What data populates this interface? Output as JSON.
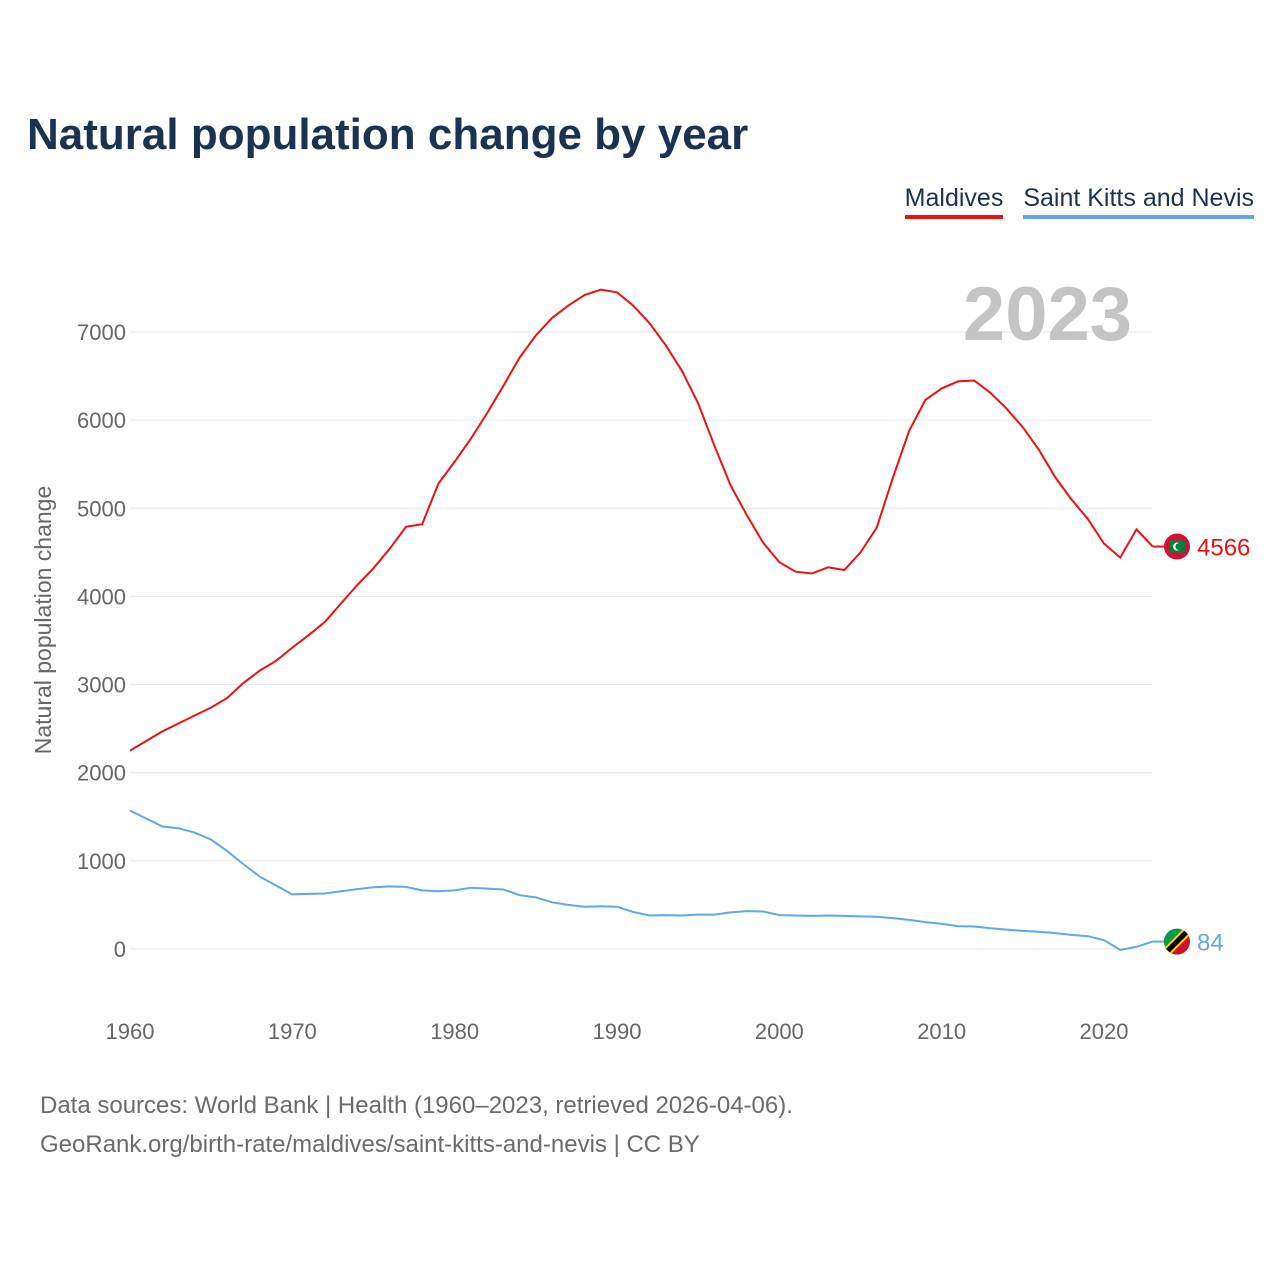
{
  "title": "Natural population change by year",
  "legend": [
    {
      "label": "Maldives",
      "color": "#ee1111"
    },
    {
      "label": "Saint Kitts and Nevis",
      "color": "#5fa8ec"
    }
  ],
  "footer": {
    "line1": "Data sources: World Bank | Health (1960–2023, retrieved 2026-04-06).",
    "line2": "GeoRank.org/birth-rate/maldives/saint-kitts-and-nevis | CC BY"
  },
  "chart_data": {
    "type": "line",
    "title": "Natural population change by year",
    "ylabel": "Natural population change",
    "xlabel": "",
    "year_label": "2023",
    "xlim": [
      1960,
      2023
    ],
    "ylim": [
      -700,
      8000
    ],
    "xticks": [
      1960,
      1970,
      1980,
      1990,
      2000,
      2010,
      2020
    ],
    "yticks": [
      0,
      1000,
      2000,
      3000,
      4000,
      5000,
      6000,
      7000
    ],
    "grid": true,
    "legend_position": "top-right",
    "x": [
      1960,
      1961,
      1962,
      1963,
      1964,
      1965,
      1966,
      1967,
      1968,
      1969,
      1970,
      1971,
      1972,
      1973,
      1974,
      1975,
      1976,
      1977,
      1978,
      1979,
      1980,
      1981,
      1982,
      1983,
      1984,
      1985,
      1986,
      1987,
      1988,
      1989,
      1990,
      1991,
      1992,
      1993,
      1994,
      1995,
      1996,
      1997,
      1998,
      1999,
      2000,
      2001,
      2002,
      2003,
      2004,
      2005,
      2006,
      2007,
      2008,
      2009,
      2010,
      2011,
      2012,
      2013,
      2014,
      2015,
      2016,
      2017,
      2018,
      2019,
      2020,
      2021,
      2022,
      2023
    ],
    "series": [
      {
        "name": "Maldives",
        "color": "#ee1111",
        "end_label": "4566",
        "flag": "maldives-flag",
        "values": [
          2250,
          2360,
          2470,
          2560,
          2650,
          2740,
          2850,
          3020,
          3160,
          3270,
          3420,
          3560,
          3710,
          3920,
          4130,
          4320,
          4540,
          4790,
          4820,
          5280,
          5530,
          5790,
          6080,
          6390,
          6710,
          6960,
          7160,
          7300,
          7420,
          7480,
          7450,
          7300,
          7100,
          6850,
          6560,
          6190,
          5710,
          5260,
          4920,
          4610,
          4390,
          4280,
          4260,
          4330,
          4300,
          4500,
          4780,
          5350,
          5880,
          6230,
          6360,
          6440,
          6450,
          6310,
          6130,
          5920,
          5660,
          5350,
          5100,
          4880,
          4600,
          4440,
          4760,
          4566
        ]
      },
      {
        "name": "Saint Kitts and Nevis",
        "color": "#5fa8ec",
        "end_label": "84",
        "flag": "saint-kitts-flag",
        "values": [
          1570,
          1480,
          1390,
          1370,
          1320,
          1240,
          1110,
          960,
          820,
          720,
          620,
          625,
          630,
          655,
          680,
          700,
          710,
          705,
          665,
          655,
          665,
          695,
          685,
          675,
          610,
          585,
          530,
          500,
          480,
          485,
          480,
          420,
          380,
          385,
          380,
          390,
          390,
          415,
          430,
          425,
          385,
          380,
          375,
          380,
          375,
          370,
          365,
          350,
          330,
          305,
          285,
          260,
          255,
          235,
          220,
          205,
          195,
          180,
          160,
          145,
          100,
          -10,
          25,
          84
        ]
      }
    ]
  }
}
